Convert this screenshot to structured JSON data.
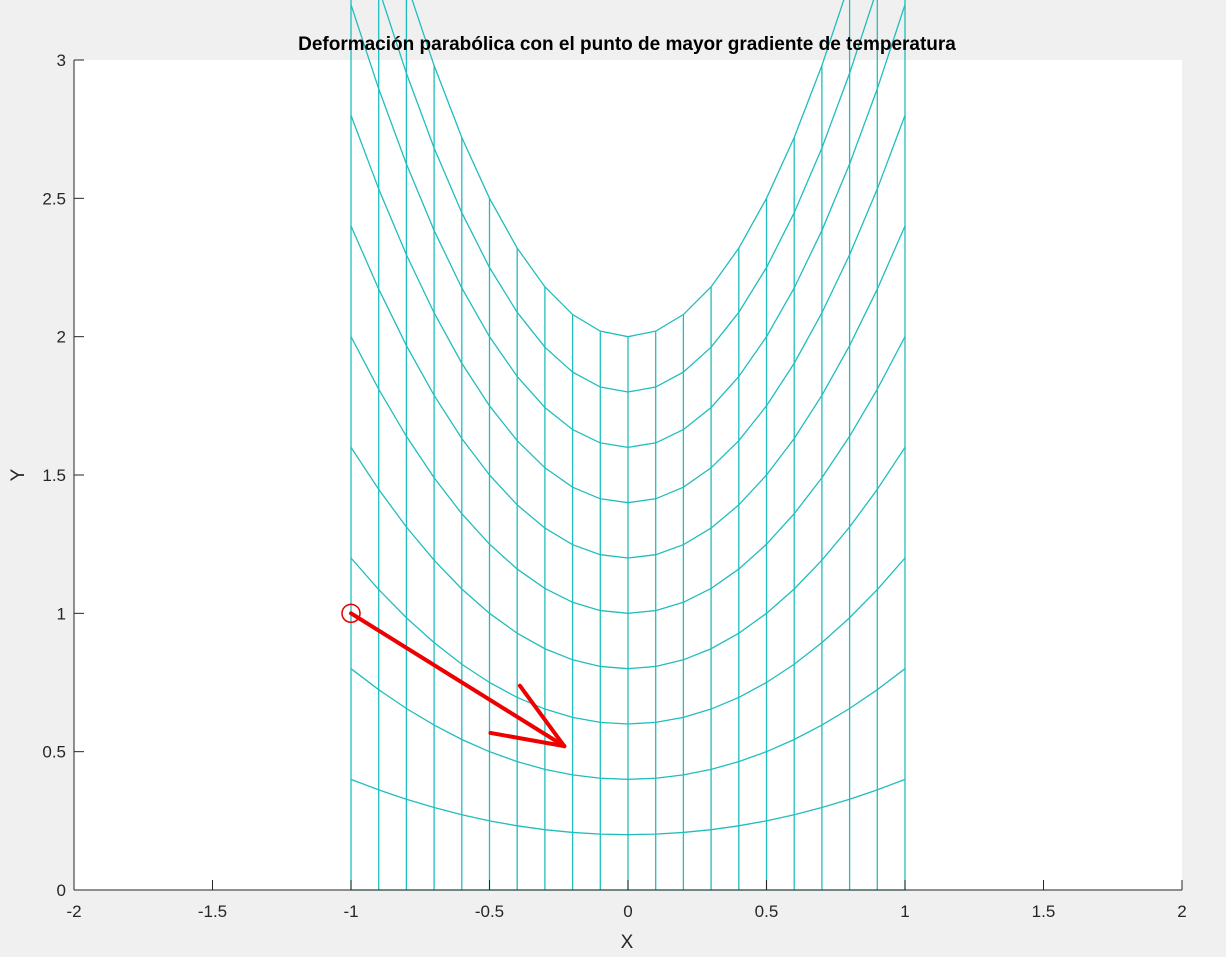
{
  "chart_data": {
    "type": "line",
    "title": "Deformación parabólica con el punto de mayor gradiente de temperatura",
    "xlabel": "X",
    "ylabel": "Y",
    "xlim": [
      -2,
      2
    ],
    "ylim": [
      0,
      3
    ],
    "xticks": [
      -2,
      -1.5,
      -1,
      -0.5,
      0,
      0.5,
      1,
      1.5,
      2
    ],
    "xtick_labels": [
      "-2",
      "-1.5",
      "-1",
      "-0.5",
      "0",
      "0.5",
      "1",
      "1.5",
      "2"
    ],
    "yticks": [
      0,
      0.5,
      1,
      1.5,
      2,
      2.5,
      3
    ],
    "ytick_labels": [
      "0",
      "0.5",
      "1",
      "1.5",
      "2",
      "2.5",
      "3"
    ],
    "grid": false,
    "mesh": {
      "description_formula": "y = v + v*x^2",
      "x_values": [
        -1,
        -0.9,
        -0.8,
        -0.7,
        -0.6,
        -0.5,
        -0.4,
        -0.3,
        -0.2,
        -0.1,
        0,
        0.1,
        0.2,
        0.3,
        0.4,
        0.5,
        0.6,
        0.7,
        0.8,
        0.9,
        1
      ],
      "v_values": [
        0,
        0.2,
        0.4,
        0.6,
        0.8,
        1.0,
        1.2,
        1.4,
        1.6,
        1.8,
        2.0
      ],
      "color": "#21bdbd"
    },
    "marker_point": {
      "x": -1,
      "y": 1,
      "color": "#e00000"
    },
    "arrow": {
      "x0": -1,
      "y0": 1,
      "x1": -0.23,
      "y1": 0.52,
      "color": "#ee0000"
    }
  }
}
